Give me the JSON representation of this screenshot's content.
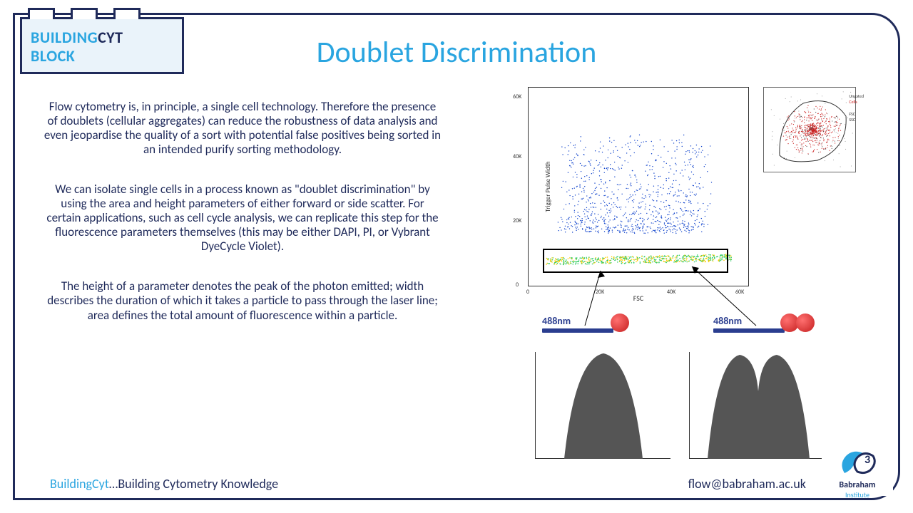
{
  "logo": {
    "word1": "BUILDING",
    "word2": "CYT",
    "word3": "BLOCK"
  },
  "title": "Doublet Discrimination",
  "paragraphs": {
    "p1": "Flow cytometry is, in principle, a single cell technology. Therefore the presence of doublets (cellular aggregates) can reduce the robustness of data analysis and even jeopardise the quality of a sort with potential false positives being sorted in an intended purify sorting methodology.",
    "p2": "We can isolate single cells in a process known as \"doublet discrimination\" by using the area and height parameters of either forward or side scatter. For certain applications, such as cell cycle analysis, we can replicate this step for the fluorescence parameters themselves (this may be either DAPI, PI, or Vybrant DyeCycle Violet).",
    "p3": "The height of a parameter denotes the peak of the photon emitted; width describes the duration of which it takes a particle to pass through the laser line; area defines the total amount of fluorescence within a particle."
  },
  "scatter": {
    "ylabel": "Trigger Pulse Width",
    "xlabel": "FSC",
    "yticks": [
      "0",
      "20K",
      "40K",
      "60K"
    ],
    "xticks": [
      "0",
      "20K",
      "40K",
      "60K"
    ],
    "inset_labels": [
      "Ungated",
      "Cells",
      "FSC",
      "SSC"
    ],
    "colors": {
      "dense": "#ffcc00",
      "mid": "#33cc66",
      "sparse": "#1144cc",
      "inset": "#cc2222"
    }
  },
  "laser": {
    "wavelength": "488nm",
    "bar_color": "#2a3d8f",
    "cell_color": "#d42626"
  },
  "footer": {
    "left_cyan": "BuildingCyt",
    "left_rest": "…Building Cytometry Knowledge",
    "email": "flow@babraham.ac.uk",
    "inst1": "Babraham",
    "inst2": "Institute"
  },
  "colors": {
    "border": "#1f2a5a",
    "accent": "#2aa5e0",
    "text": "#1f2a5a"
  }
}
